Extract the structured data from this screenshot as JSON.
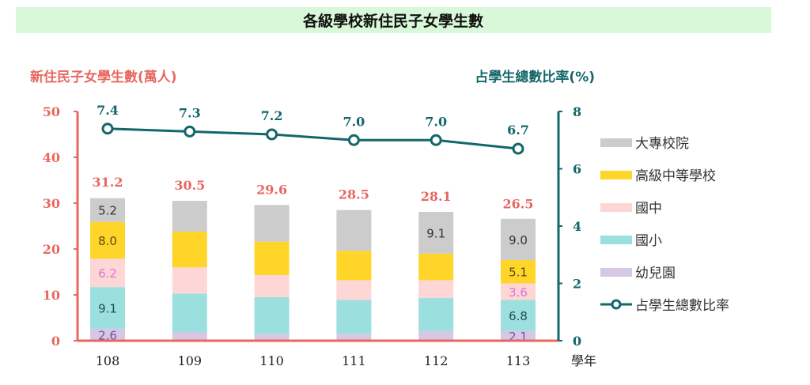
{
  "chart_data": {
    "type": "bar",
    "title": "各級學校新住民子女學生數",
    "ylabel": "新住民子女學生數(萬人)",
    "y2label": "占學生總數比率(%)",
    "xlabel": "學年",
    "categories": [
      "108",
      "109",
      "110",
      "111",
      "112",
      "113"
    ],
    "ylim": [
      0,
      50
    ],
    "yticks": [
      "0",
      "10",
      "20",
      "30",
      "40",
      "50"
    ],
    "y2lim": [
      0,
      8
    ],
    "y2ticks": [
      "0",
      "2",
      "4",
      "6",
      "8"
    ],
    "grid": false,
    "legend_position": "right",
    "stacked": true,
    "series": [
      {
        "name": "幼兒園",
        "color": "#d6c8e4",
        "label_color": "#7a4fb0",
        "values": [
          2.6,
          1.9,
          1.5,
          1.5,
          2.1,
          2.1
        ],
        "labels": [
          "2.6",
          null,
          null,
          null,
          null,
          "2.1"
        ]
      },
      {
        "name": "國小",
        "color": "#9bdfdf",
        "label_color": "#1f4f55",
        "values": [
          9.1,
          8.4,
          8.0,
          7.4,
          7.2,
          6.8
        ],
        "labels": [
          "9.1",
          null,
          null,
          null,
          null,
          "6.8"
        ]
      },
      {
        "name": "國中",
        "color": "#fdd6d6",
        "label_color": "#e070d8",
        "values": [
          6.2,
          5.7,
          4.8,
          4.3,
          3.9,
          3.6
        ],
        "labels": [
          "6.2",
          null,
          null,
          null,
          null,
          "3.6"
        ]
      },
      {
        "name": "高級中等學校",
        "color": "#ffd52a",
        "label_color": "#5a4a10",
        "values": [
          8.0,
          7.8,
          7.3,
          6.4,
          5.8,
          5.1
        ],
        "labels": [
          "8.0",
          null,
          null,
          null,
          null,
          "5.1"
        ]
      },
      {
        "name": "大專校院",
        "color": "#cccccc",
        "label_color": "#333333",
        "values": [
          5.2,
          6.7,
          8.0,
          8.9,
          9.1,
          9.0
        ],
        "labels": [
          "5.2",
          null,
          null,
          null,
          "9.1",
          "9.0"
        ]
      }
    ],
    "totals": [
      "31.2",
      "30.5",
      "29.6",
      "28.5",
      "28.1",
      "26.5"
    ],
    "totals_values": [
      31.2,
      30.5,
      29.6,
      28.5,
      28.1,
      26.5
    ],
    "line_series": {
      "name": "占學生總數比率",
      "axis": "right",
      "color": "#13676a",
      "values": [
        7.4,
        7.3,
        7.2,
        7.0,
        7.0,
        6.7
      ],
      "labels": [
        "7.4",
        "7.3",
        "7.2",
        "7.0",
        "7.0",
        "6.7"
      ]
    },
    "colors": {
      "left_axis": "#e8675f",
      "right_axis": "#13676a",
      "title_bg": "#d9f7d9"
    }
  }
}
